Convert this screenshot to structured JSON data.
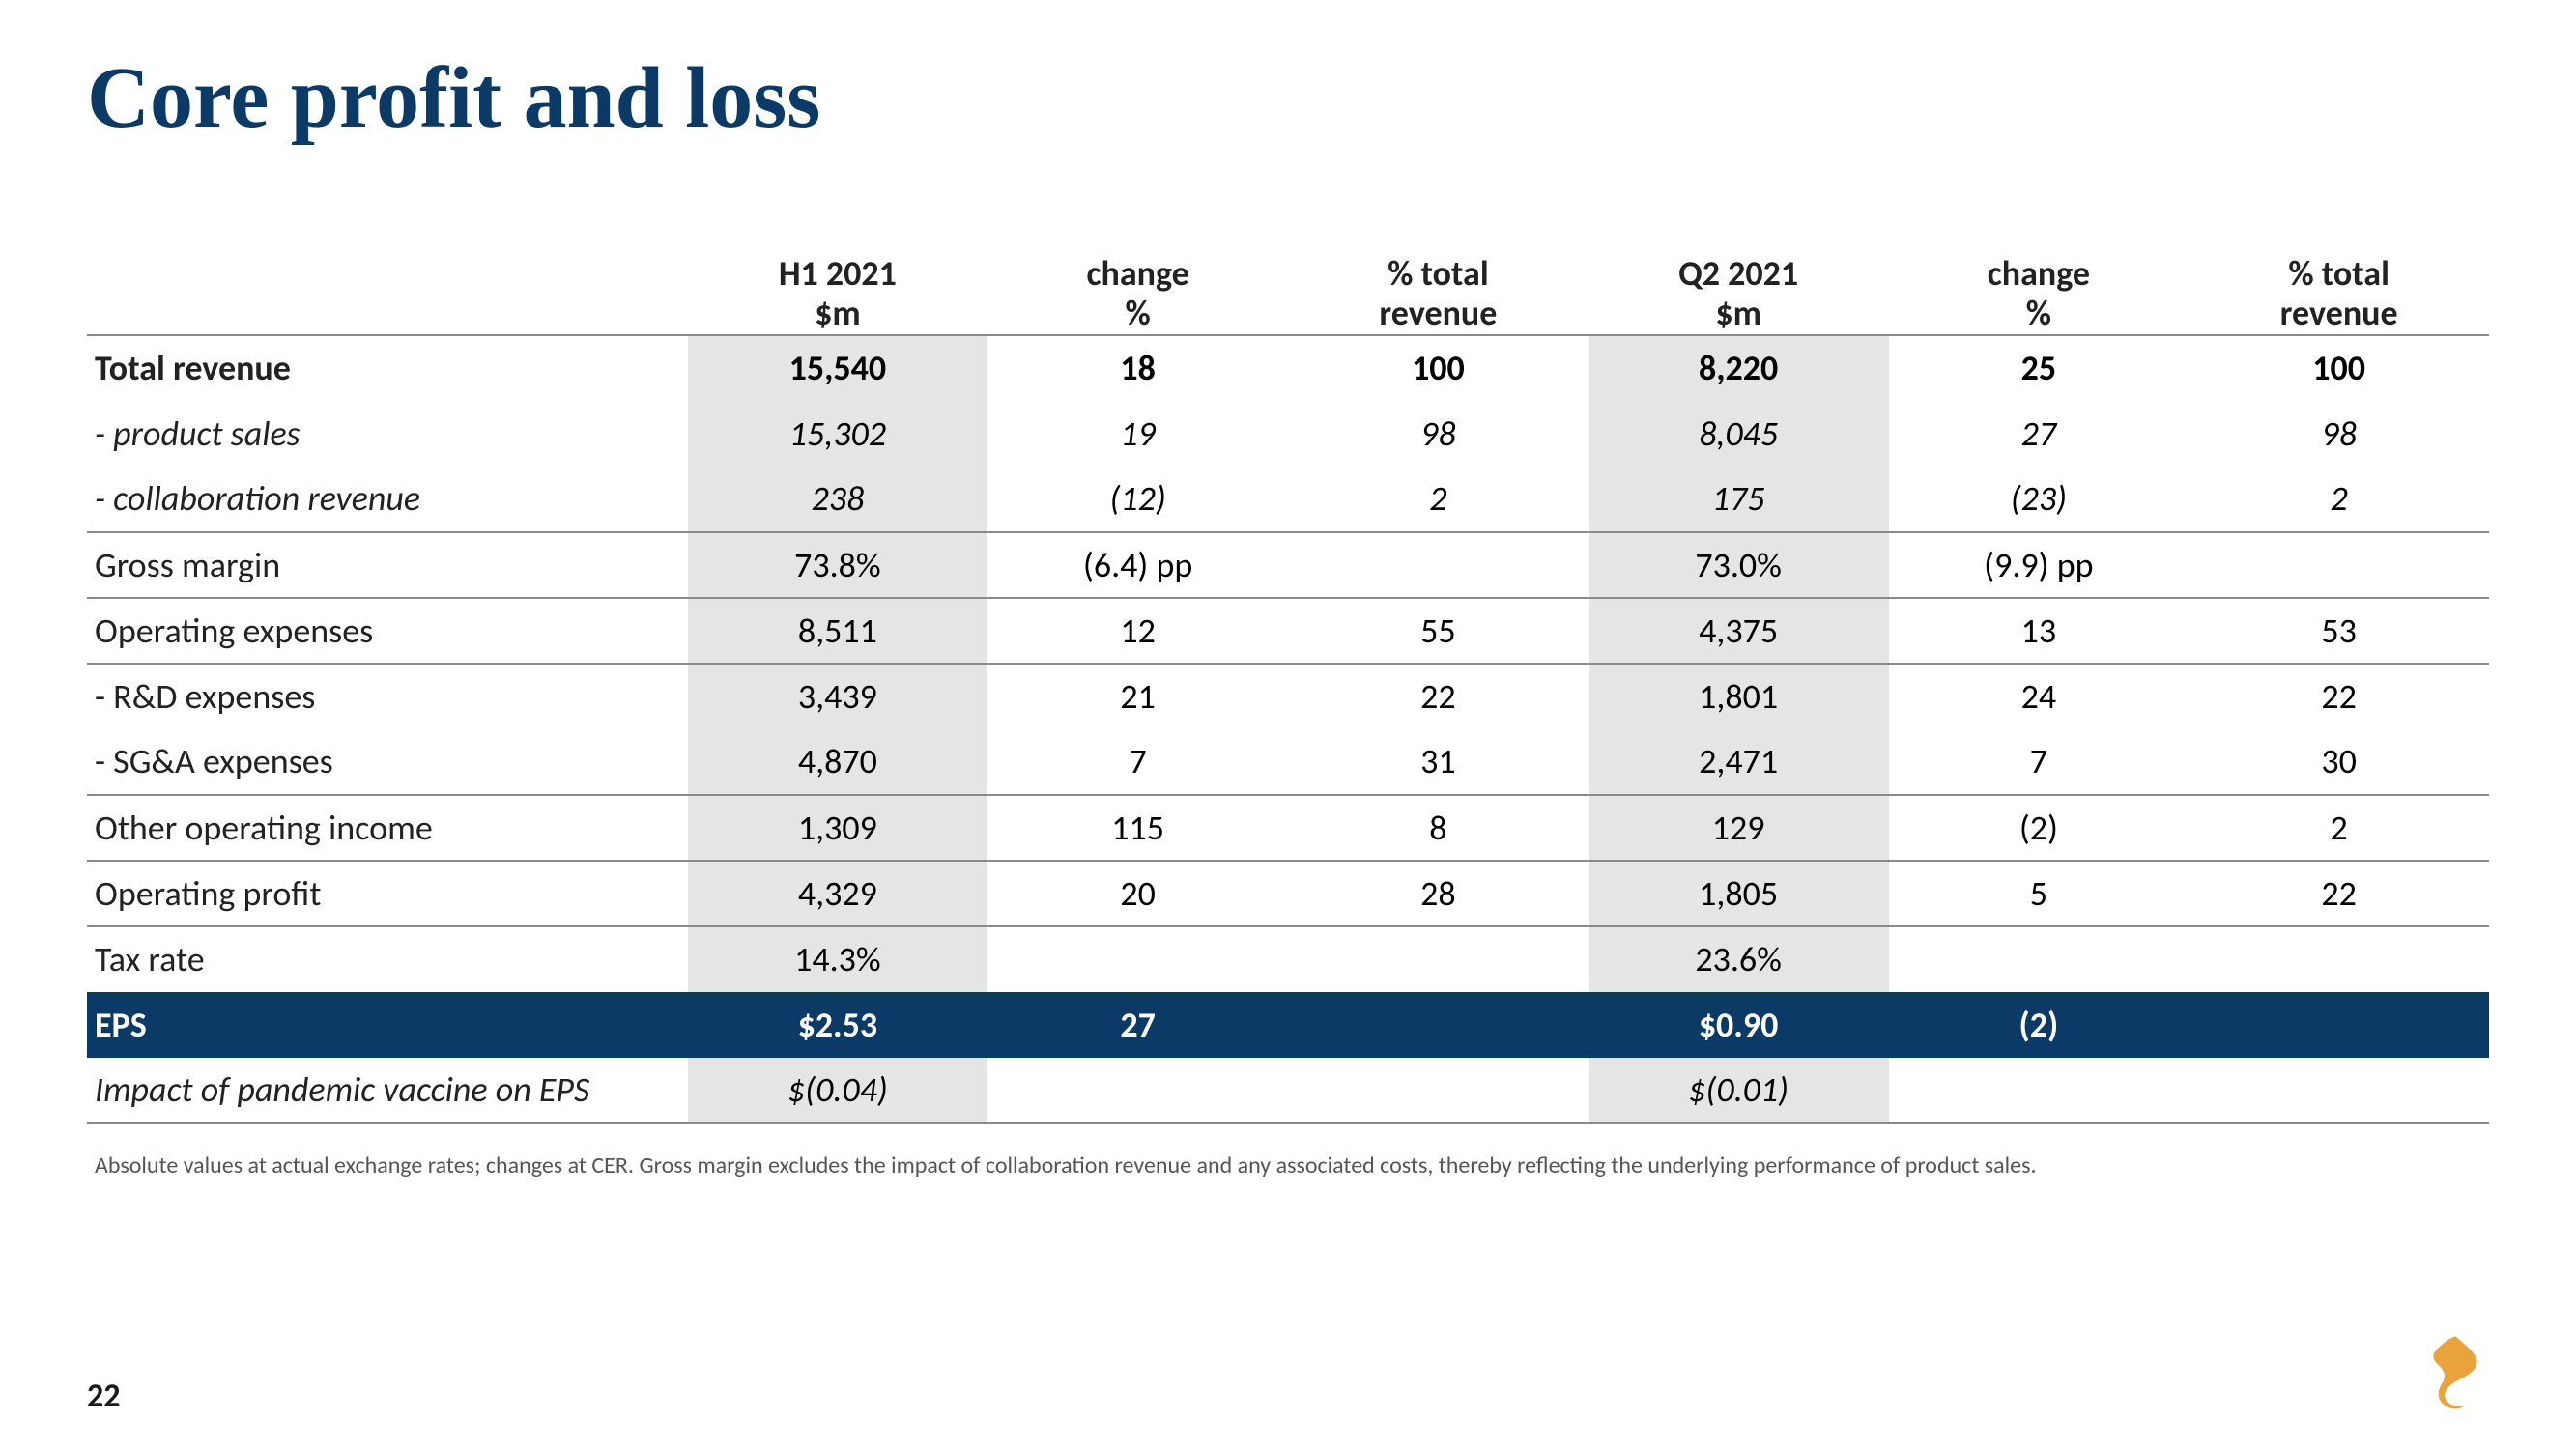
{
  "title": "Core profit and loss",
  "page_number": "22",
  "footnote": "Absolute values at actual exchange rates; changes at CER. Gross margin excludes the impact of collaboration revenue and any associated costs, thereby reflecting the underlying performance of product sales.",
  "colors": {
    "title": "#0b3a66",
    "eps_row_bg": "#0b3a66",
    "eps_row_text": "#ffffff",
    "shaded_bg": "#e5e5e5",
    "rule": "#8a8a8a",
    "logo": "#e8a33d"
  },
  "columns": [
    {
      "l1": "H1 2021",
      "l2": "$m"
    },
    {
      "l1": "change",
      "l2": "%"
    },
    {
      "l1": "% total",
      "l2": "revenue"
    },
    {
      "l1": "Q2 2021",
      "l2": "$m"
    },
    {
      "l1": "change",
      "l2": "%"
    },
    {
      "l1": "% total",
      "l2": "revenue"
    }
  ],
  "rows": [
    {
      "label": "Total revenue",
      "style": "bold",
      "border_top": true,
      "v": [
        "15,540",
        "18",
        "100",
        "8,220",
        "25",
        "100"
      ]
    },
    {
      "label": "- product sales",
      "style": "italic",
      "v": [
        "15,302",
        "19",
        "98",
        "8,045",
        "27",
        "98"
      ]
    },
    {
      "label": "- collaboration revenue",
      "style": "italic",
      "border_bottom": true,
      "v": [
        "238",
        "(12)",
        "2",
        "175",
        "(23)",
        "2"
      ]
    },
    {
      "label": "Gross margin",
      "style": "normal",
      "border_bottom": true,
      "v": [
        "73.8%",
        "(6.4) pp",
        "",
        "73.0%",
        "(9.9) pp",
        ""
      ]
    },
    {
      "label": "Operating expenses",
      "style": "normal",
      "border_bottom": true,
      "v": [
        "8,511",
        "12",
        "55",
        "4,375",
        "13",
        "53"
      ]
    },
    {
      "label": "- R&D expenses",
      "style": "normal",
      "v": [
        "3,439",
        "21",
        "22",
        "1,801",
        "24",
        "22"
      ]
    },
    {
      "label": "- SG&A expenses",
      "style": "normal",
      "border_bottom": true,
      "v": [
        "4,870",
        "7",
        "31",
        "2,471",
        "7",
        "30"
      ]
    },
    {
      "label": "Other operating income",
      "style": "normal",
      "border_bottom": true,
      "v": [
        "1,309",
        "115",
        "8",
        "129",
        "(2)",
        "2"
      ]
    },
    {
      "label": "Operating profit",
      "style": "normal",
      "border_bottom": true,
      "v": [
        "4,329",
        "20",
        "28",
        "1,805",
        "5",
        "22"
      ]
    },
    {
      "label": "Tax rate",
      "style": "normal",
      "v": [
        "14.3%",
        "",
        "",
        "23.6%",
        "",
        ""
      ]
    },
    {
      "label": "EPS",
      "style": "eps",
      "v": [
        "$2.53",
        "27",
        "",
        "$0.90",
        "(2)",
        ""
      ]
    },
    {
      "label": "Impact of pandemic vaccine on EPS",
      "style": "italic",
      "border_bottom": true,
      "v": [
        "$(0.04)",
        "",
        "",
        "$(0.01)",
        "",
        ""
      ]
    }
  ],
  "shaded_cols": [
    0,
    3
  ]
}
